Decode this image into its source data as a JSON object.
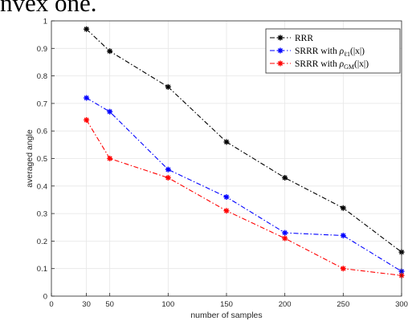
{
  "page": {
    "top_text": "nvex one."
  },
  "chart_data": {
    "type": "line",
    "title": "",
    "xlabel": "number of samples",
    "ylabel": "averaged angle",
    "xlim": [
      0,
      300
    ],
    "ylim": [
      0,
      1
    ],
    "xticks": [
      0,
      30,
      50,
      100,
      150,
      200,
      250,
      300
    ],
    "yticks": [
      0,
      0.1,
      0.2,
      0.3,
      0.4,
      0.5,
      0.6,
      0.7,
      0.8,
      0.9,
      1
    ],
    "grid": true,
    "legend_position": "top-right",
    "x": [
      30,
      50,
      100,
      150,
      200,
      250,
      300
    ],
    "series": [
      {
        "name": "RRR",
        "legend_prefix": "RRR",
        "legend_math": "",
        "legend_sub": "",
        "legend_suffix": "",
        "color": "#000000",
        "values": [
          0.97,
          0.89,
          0.76,
          0.56,
          0.43,
          0.32,
          0.16
        ]
      },
      {
        "name": "SRRR with ρℓ1(|x|)",
        "legend_prefix": "SRRR with ",
        "legend_math": "ρ",
        "legend_sub": "ℓ1",
        "legend_suffix": "(|x|)",
        "color": "#0000ff",
        "values": [
          0.72,
          0.67,
          0.46,
          0.36,
          0.23,
          0.22,
          0.09
        ]
      },
      {
        "name": "SRRR with ρGM(|x|)",
        "legend_prefix": "SRRR with ",
        "legend_math": "ρ",
        "legend_sub": "GM",
        "legend_suffix": "(|x|)",
        "color": "#ff0000",
        "values": [
          0.64,
          0.5,
          0.43,
          0.31,
          0.21,
          0.1,
          0.075
        ]
      }
    ]
  }
}
